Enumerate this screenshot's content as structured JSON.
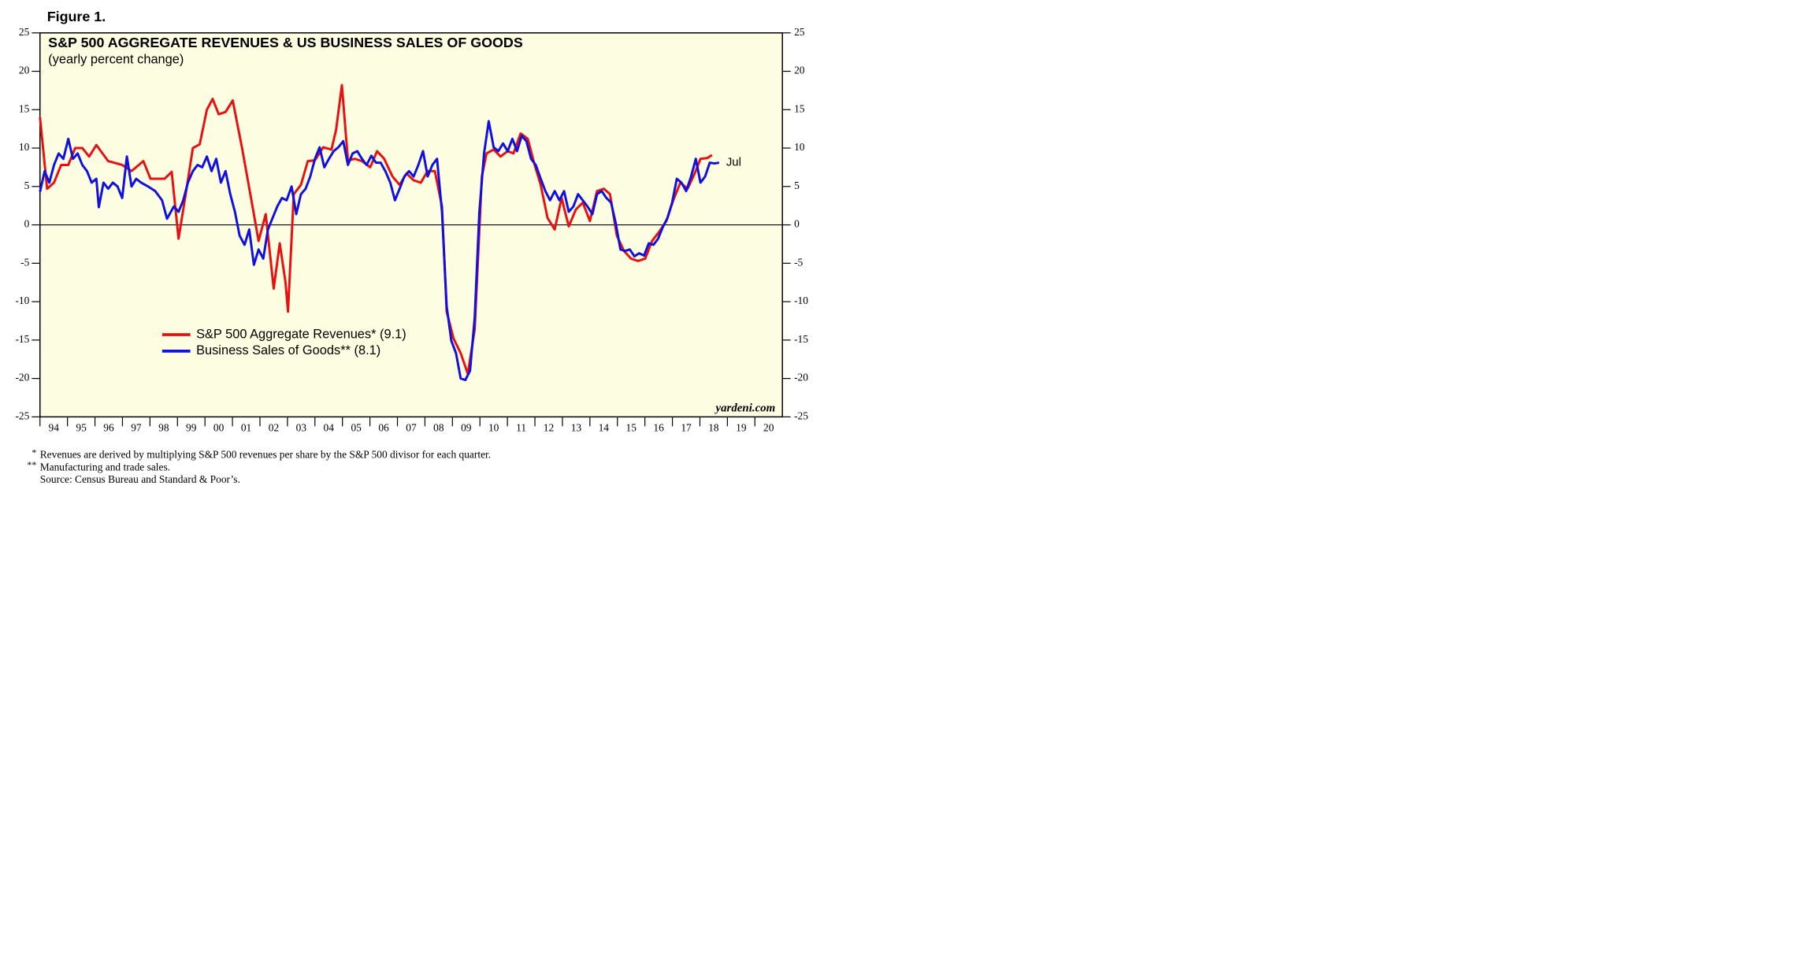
{
  "chart_data": {
    "type": "line",
    "figure_label": "Figure 1.",
    "title": "S&P 500 AGGREGATE REVENUES & US BUSINESS SALES OF GOODS",
    "subtitle": "(yearly percent change)",
    "source_credit": "yardeni.com",
    "annotation": {
      "text": "Jul",
      "color": "#1010e0"
    },
    "footnotes": [
      {
        "marker": "*",
        "text": "Revenues are derived by multiplying S&P 500 revenues per share by the S&P 500 divisor for each quarter."
      },
      {
        "marker": "**",
        "text": "Manufacturing and trade sales."
      },
      {
        "marker": null,
        "text": "Source: Census Bureau and Standard & Poor’s."
      }
    ],
    "background": "#fdfde1",
    "zero_line": true,
    "legend": "lower-left",
    "xlim": [
      1994,
      2021
    ],
    "xticks": [
      {
        "value": 1994,
        "label": "94"
      },
      {
        "value": 1995,
        "label": "95"
      },
      {
        "value": 1996,
        "label": "96"
      },
      {
        "value": 1997,
        "label": "97"
      },
      {
        "value": 1998,
        "label": "98"
      },
      {
        "value": 1999,
        "label": "99"
      },
      {
        "value": 2000,
        "label": "00"
      },
      {
        "value": 2001,
        "label": "01"
      },
      {
        "value": 2002,
        "label": "02"
      },
      {
        "value": 2003,
        "label": "03"
      },
      {
        "value": 2004,
        "label": "04"
      },
      {
        "value": 2005,
        "label": "05"
      },
      {
        "value": 2006,
        "label": "06"
      },
      {
        "value": 2007,
        "label": "07"
      },
      {
        "value": 2008,
        "label": "08"
      },
      {
        "value": 2009,
        "label": "09"
      },
      {
        "value": 2010,
        "label": "10"
      },
      {
        "value": 2011,
        "label": "11"
      },
      {
        "value": 2012,
        "label": "12"
      },
      {
        "value": 2013,
        "label": "13"
      },
      {
        "value": 2014,
        "label": "14"
      },
      {
        "value": 2015,
        "label": "15"
      },
      {
        "value": 2016,
        "label": "16"
      },
      {
        "value": 2017,
        "label": "17"
      },
      {
        "value": 2018,
        "label": "18"
      },
      {
        "value": 2019,
        "label": "19"
      },
      {
        "value": 2020,
        "label": "20"
      }
    ],
    "ylim": [
      -25,
      25
    ],
    "yticks": [
      25,
      20,
      15,
      10,
      5,
      0,
      -5,
      -10,
      -15,
      -20,
      -25
    ],
    "y2lim": [
      -25,
      25
    ],
    "y2ticks": [
      25,
      20,
      15,
      10,
      5,
      0,
      -5,
      -10,
      -15,
      -20,
      -25
    ],
    "series": [
      {
        "name": "S&P 500 Aggregate Revenues* (9.1)",
        "color": "#e81010",
        "x": [
          1994.0,
          1994.26,
          1994.51,
          1994.77,
          1995.03,
          1995.28,
          1995.54,
          1995.79,
          1996.05,
          1996.48,
          1996.99,
          1997.33,
          1997.76,
          1998.02,
          1998.53,
          1998.79,
          1999.04,
          1999.3,
          1999.56,
          1999.81,
          2000.07,
          2000.28,
          2000.5,
          2000.75,
          2001.01,
          2001.35,
          2001.69,
          2001.95,
          2002.21,
          2002.5,
          2002.72,
          2002.93,
          2003.02,
          2003.23,
          2003.49,
          2003.74,
          2004.0,
          2004.3,
          2004.6,
          2004.77,
          2004.98,
          2005.2,
          2005.45,
          2005.71,
          2006.01,
          2006.26,
          2006.52,
          2006.82,
          2007.08,
          2007.33,
          2007.59,
          2007.85,
          2008.1,
          2008.36,
          2008.62,
          2008.79,
          2009.04,
          2009.3,
          2009.56,
          2009.81,
          2010.07,
          2010.24,
          2010.5,
          2010.75,
          2011.01,
          2011.22,
          2011.48,
          2011.74,
          2011.99,
          2012.21,
          2012.46,
          2012.72,
          2012.97,
          2013.23,
          2013.49,
          2013.74,
          2014.0,
          2014.26,
          2014.51,
          2014.73,
          2014.98,
          2015.24,
          2015.5,
          2015.75,
          2016.01,
          2016.26,
          2016.52,
          2016.78,
          2017.03,
          2017.29,
          2017.55,
          2017.8,
          2018.02,
          2018.27,
          2018.44
        ],
        "values": [
          14,
          4.7,
          5.5,
          7.8,
          7.8,
          10,
          10,
          8.9,
          10.4,
          8.3,
          7.8,
          7,
          8.3,
          6,
          6,
          6.9,
          -1.8,
          4,
          10,
          10.5,
          15,
          16.4,
          14.4,
          14.7,
          16.2,
          10,
          3.2,
          -2.1,
          1.4,
          -8.3,
          -2.4,
          -7.5,
          -11.3,
          4,
          5.2,
          8.3,
          8.4,
          10.1,
          9.8,
          12.4,
          18.2,
          8.4,
          8.6,
          8.3,
          7.5,
          9.6,
          8.6,
          6.3,
          5.2,
          6.7,
          5.8,
          5.5,
          7,
          7,
          2.4,
          -11.3,
          -14.8,
          -16.7,
          -19.4,
          -13.6,
          6.3,
          9.3,
          9.8,
          8.9,
          9.6,
          9.3,
          11.9,
          11.2,
          7.8,
          5.2,
          0.9,
          -0.6,
          3.5,
          -0.2,
          2,
          2.9,
          0.5,
          4.4,
          4.7,
          4,
          -1.4,
          -3.4,
          -4.4,
          -4.7,
          -4.4,
          -2.1,
          -0.9,
          0.5,
          3.2,
          5.5,
          4.7,
          6.6,
          8.6,
          8.7,
          9.1
        ]
      },
      {
        "name": "Business Sales of Goods** (8.1)",
        "color": "#1010e0",
        "x": [
          1994.0,
          1994.17,
          1994.34,
          1994.51,
          1994.68,
          1994.85,
          1995.03,
          1995.2,
          1995.37,
          1995.54,
          1995.71,
          1995.88,
          1996.05,
          1996.14,
          1996.31,
          1996.48,
          1996.65,
          1996.82,
          1996.99,
          1997.16,
          1997.33,
          1997.5,
          1997.68,
          1997.93,
          1998.19,
          1998.44,
          1998.62,
          1998.87,
          1999.04,
          1999.21,
          1999.38,
          1999.56,
          1999.73,
          1999.9,
          2000.07,
          2000.24,
          2000.41,
          2000.58,
          2000.75,
          2000.92,
          2001.09,
          2001.26,
          2001.44,
          2001.61,
          2001.78,
          2001.95,
          2002.12,
          2002.29,
          2002.46,
          2002.63,
          2002.8,
          2002.97,
          2003.15,
          2003.32,
          2003.49,
          2003.66,
          2003.83,
          2004.0,
          2004.17,
          2004.34,
          2004.51,
          2004.68,
          2004.85,
          2005.03,
          2005.2,
          2005.37,
          2005.54,
          2005.71,
          2005.88,
          2006.05,
          2006.22,
          2006.39,
          2006.56,
          2006.74,
          2006.91,
          2007.08,
          2007.25,
          2007.42,
          2007.59,
          2007.76,
          2007.93,
          2008.1,
          2008.27,
          2008.44,
          2008.62,
          2008.79,
          2008.96,
          2009.13,
          2009.3,
          2009.47,
          2009.64,
          2009.81,
          2009.98,
          2010.15,
          2010.32,
          2010.5,
          2010.67,
          2010.84,
          2011.01,
          2011.18,
          2011.35,
          2011.52,
          2011.69,
          2011.86,
          2012.03,
          2012.21,
          2012.38,
          2012.55,
          2012.72,
          2012.89,
          2013.06,
          2013.23,
          2013.4,
          2013.57,
          2013.74,
          2013.91,
          2014.09,
          2014.26,
          2014.43,
          2014.6,
          2014.77,
          2014.94,
          2015.11,
          2015.28,
          2015.45,
          2015.62,
          2015.79,
          2015.97,
          2016.14,
          2016.31,
          2016.48,
          2016.65,
          2016.82,
          2016.99,
          2017.16,
          2017.33,
          2017.5,
          2017.68,
          2017.85,
          2018.02,
          2018.19,
          2018.36,
          2018.53,
          2018.7
        ],
        "values": [
          4.3,
          7,
          5.5,
          7.8,
          9.3,
          8.6,
          11.2,
          8.6,
          9.3,
          7.8,
          7,
          5.5,
          6,
          2.3,
          5.5,
          4.7,
          5.5,
          5,
          3.5,
          8.9,
          5,
          6,
          5.5,
          5,
          4.4,
          3.2,
          0.8,
          2.4,
          1.7,
          3.2,
          5.5,
          7,
          7.8,
          7.5,
          8.9,
          7,
          8.6,
          5.5,
          7,
          4,
          1.7,
          -1.4,
          -2.6,
          -0.6,
          -5.2,
          -3.2,
          -4.4,
          -0.6,
          0.9,
          2.4,
          3.5,
          3.2,
          5,
          1.4,
          4,
          4.7,
          6.3,
          8.6,
          10.1,
          7.5,
          8.6,
          9.6,
          10.1,
          10.9,
          7.8,
          9.3,
          9.6,
          8.6,
          7.8,
          9,
          8.1,
          8.1,
          7,
          5.5,
          3.2,
          4.7,
          6.3,
          7,
          6.3,
          7.8,
          9.6,
          6.3,
          7.8,
          8.6,
          1.7,
          -10.6,
          -15.1,
          -16.7,
          -20,
          -20.2,
          -19,
          -12.1,
          1.7,
          9.3,
          13.5,
          10.1,
          9.6,
          10.6,
          9.6,
          11.2,
          9.6,
          11.6,
          10.9,
          8.6,
          7.8,
          6,
          4.4,
          3.2,
          4.4,
          3.2,
          4.4,
          1.7,
          2.4,
          4,
          3.2,
          2.4,
          1.4,
          4,
          4.4,
          3.5,
          2.9,
          0.2,
          -3.2,
          -3.4,
          -3.2,
          -4.1,
          -3.7,
          -4,
          -2.4,
          -2.6,
          -1.8,
          -0.3,
          0.9,
          2.9,
          6,
          5.5,
          4.4,
          6.3,
          8.6,
          5.5,
          6.3,
          8.1,
          8,
          8.1
        ]
      }
    ]
  }
}
